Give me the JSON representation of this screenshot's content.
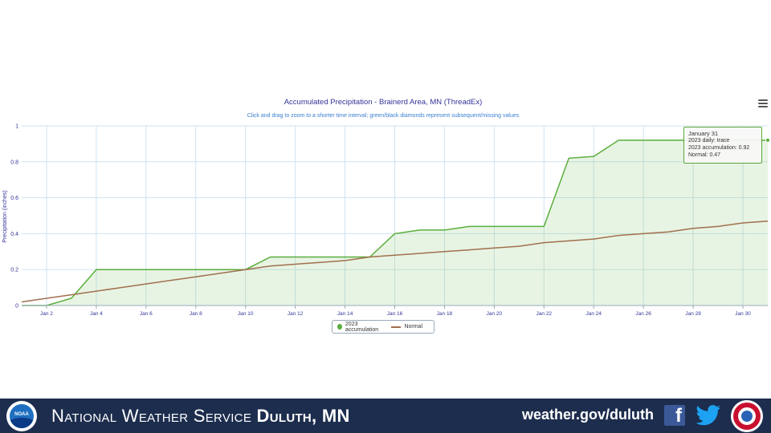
{
  "chart_data": {
    "type": "area",
    "title": "Accumulated Precipitation - Brainerd Area, MN (ThreadEx)",
    "subtitle": "Click and drag to zoom to a shorter time interval; green/black diamonds represent subsequent/missing values",
    "ylabel": "Precipitation (inches)",
    "xlabel": "",
    "ylim": [
      0,
      1
    ],
    "xlim": [
      1,
      31
    ],
    "yticks": [
      0,
      0.2,
      0.4,
      0.6,
      0.8,
      1
    ],
    "ytick_labels": [
      "0",
      "0.2",
      "0.4",
      "0.6",
      "0.8",
      "1"
    ],
    "xticks": [
      2,
      4,
      6,
      8,
      10,
      12,
      14,
      16,
      18,
      20,
      22,
      24,
      26,
      28,
      30
    ],
    "xtick_labels": [
      "Jan 2",
      "Jan 4",
      "Jan 6",
      "Jan 8",
      "Jan 10",
      "Jan 12",
      "Jan 14",
      "Jan 16",
      "Jan 18",
      "Jan 20",
      "Jan 22",
      "Jan 24",
      "Jan 26",
      "Jan 28",
      "Jan 30"
    ],
    "grid": true,
    "legend_position": "bottom-center",
    "series": [
      {
        "name": "2023 accumulation",
        "color": "#5aae3c",
        "fill": true,
        "x": [
          1,
          2,
          3,
          4,
          5,
          6,
          7,
          8,
          9,
          10,
          11,
          12,
          13,
          14,
          15,
          16,
          17,
          18,
          19,
          20,
          21,
          22,
          23,
          24,
          25,
          26,
          27,
          28,
          29,
          30,
          31
        ],
        "values": [
          0,
          0,
          0.04,
          0.2,
          0.2,
          0.2,
          0.2,
          0.2,
          0.2,
          0.2,
          0.27,
          0.27,
          0.27,
          0.27,
          0.27,
          0.4,
          0.42,
          0.42,
          0.44,
          0.44,
          0.44,
          0.44,
          0.82,
          0.83,
          0.92,
          0.92,
          0.92,
          0.92,
          0.92,
          0.92,
          0.92
        ]
      },
      {
        "name": "Normal",
        "color": "#a0704e",
        "fill": false,
        "x": [
          1,
          2,
          3,
          4,
          5,
          6,
          7,
          8,
          9,
          10,
          11,
          12,
          13,
          14,
          15,
          16,
          17,
          18,
          19,
          20,
          21,
          22,
          23,
          24,
          25,
          26,
          27,
          28,
          29,
          30,
          31
        ],
        "values": [
          0.02,
          0.04,
          0.06,
          0.08,
          0.1,
          0.12,
          0.14,
          0.16,
          0.18,
          0.2,
          0.22,
          0.23,
          0.24,
          0.25,
          0.27,
          0.28,
          0.29,
          0.3,
          0.31,
          0.32,
          0.33,
          0.35,
          0.36,
          0.37,
          0.39,
          0.4,
          0.41,
          0.43,
          0.44,
          0.46,
          0.47
        ]
      }
    ],
    "tooltip": {
      "title": "January 31",
      "lines": [
        "2023 daily: trace",
        "2023 accumulation: 0.92",
        "Normal: 0.47"
      ]
    }
  },
  "legend": {
    "items": [
      "2023 accumulation",
      "Normal"
    ]
  },
  "footer": {
    "logo_text": "NOAA",
    "title_light": "National Weather Service ",
    "title_bold": "Duluth, MN",
    "url": "weather.gov/duluth",
    "facebook_glyph": "f"
  },
  "colors": {
    "footer_bg": "#1d2d4e",
    "title_color": "#333399",
    "subtitle_color": "#3a7fd0",
    "grid_color": "#cfe3f1"
  }
}
